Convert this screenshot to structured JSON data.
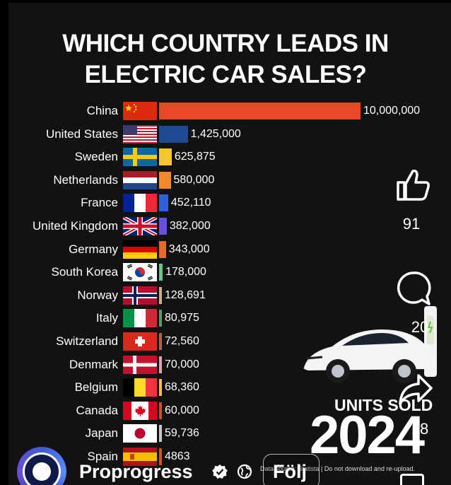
{
  "title_line1": "WHICH COUNTRY LEADS IN",
  "title_line2": "ELECTRIC CAR SALES?",
  "chart_data": {
    "type": "bar",
    "orientation": "horizontal",
    "title": "WHICH COUNTRY LEADS IN ELECTRIC CAR SALES?",
    "categories": [
      "China",
      "United States",
      "Sweden",
      "Netherlands",
      "France",
      "United Kingdom",
      "Germany",
      "South Korea",
      "Norway",
      "Italy",
      "Switzerland",
      "Denmark",
      "Belgium",
      "Canada",
      "Japan",
      "Spain"
    ],
    "values": [
      10000000,
      1425000,
      625875,
      580000,
      452110,
      382000,
      343000,
      178000,
      128691,
      80975,
      72560,
      70000,
      68360,
      60000,
      59736,
      4863
    ],
    "value_labels": [
      "10,000,000",
      "1,425,000",
      "625,875",
      "580,000",
      "452,110",
      "382,000",
      "343,000",
      "178,000",
      "128,691",
      "80,975",
      "72,560",
      "70,000",
      "68,360",
      "60,000",
      "59,736",
      "4863"
    ],
    "bar_colors": [
      "#e8472a",
      "#1e4a91",
      "#f5c632",
      "#f08a2c",
      "#2d5fe0",
      "#6a4ee0",
      "#e86a2c",
      "#5fc98e",
      "#c9b08a",
      "#5a9a6a",
      "#c9584a",
      "#d9a6b0",
      "#f0c832",
      "#e8402c",
      "#c9c9c9",
      "#e8472a"
    ],
    "xlim": [
      0,
      10000000
    ],
    "grid": false,
    "legend": "none"
  },
  "side_panel": {
    "like_icon": "thumbs-up-icon",
    "like_count": "91",
    "comment_icon": "comment-bubble-icon",
    "comment_count": "20",
    "share_icon": "share-arrow-icon",
    "share_count": "18"
  },
  "overlay": {
    "units_sold": "UNITS SOLD",
    "year": "2024",
    "footer_note": "Data source: Statista | Do not download and re-upload."
  },
  "creator": {
    "name": "Proprogress",
    "verified_icon": "verified-badge-icon",
    "globe_icon": "globe-icon",
    "follow_label": "Följ"
  }
}
